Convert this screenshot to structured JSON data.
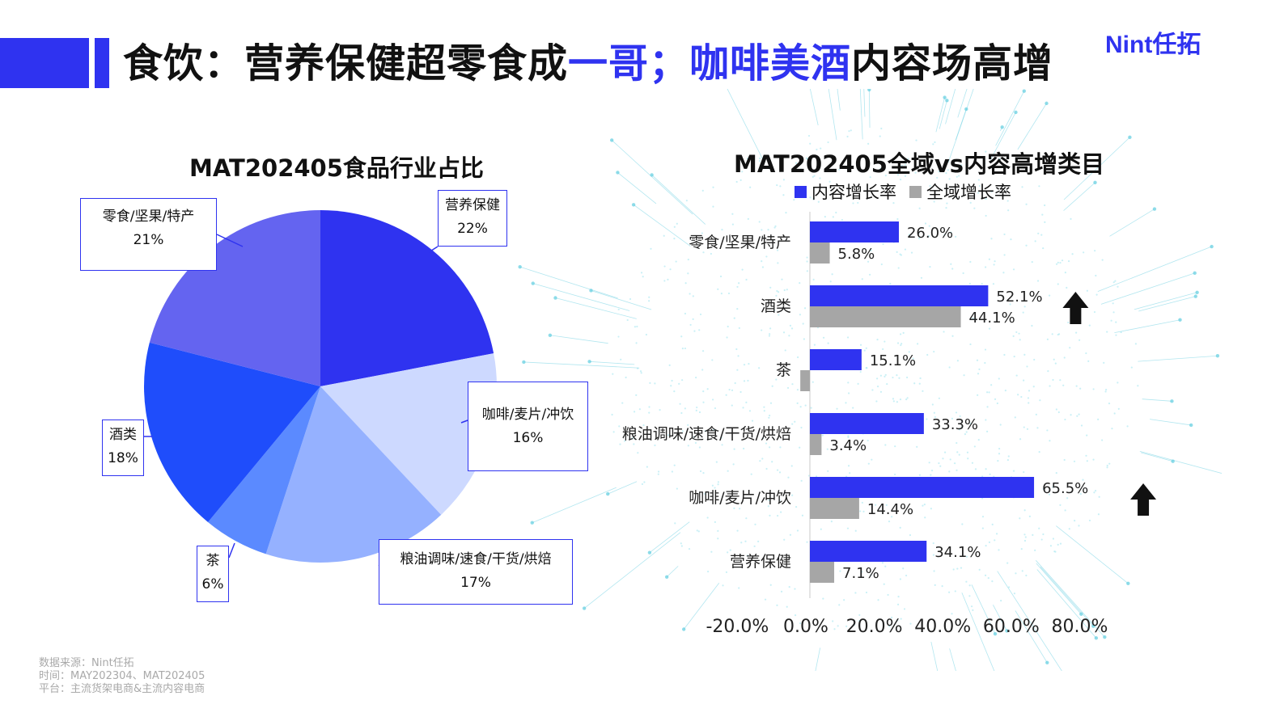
{
  "header": {
    "title_part1": "食饮：营养保健超零食成",
    "title_highlight1": "一哥；咖啡美酒",
    "title_part2": "内容场高增",
    "logo": "Nint任拓"
  },
  "footnote": {
    "line1": "数据来源：Nint任拓",
    "line2": "时间：MAY202304、MAT202405",
    "line3": "平台：主流货架电商&主流内容电商"
  },
  "colors": {
    "brand": "#2f33f0",
    "grey": "#a6a6a6"
  },
  "chart_data": [
    {
      "type": "pie",
      "title": "MAT202405食品行业占比",
      "slices": [
        {
          "name": "营养保健",
          "value": 22,
          "label": "22%",
          "color": "#2f33f0"
        },
        {
          "name": "咖啡/麦片/冲饮",
          "value": 16,
          "label": "16%",
          "color": "#cdd9ff"
        },
        {
          "name": "粮油调味/速食/干货/烘焙",
          "value": 17,
          "label": "17%",
          "color": "#95b1ff"
        },
        {
          "name": "茶",
          "value": 6,
          "label": "6%",
          "color": "#5b8aff"
        },
        {
          "name": "酒类",
          "value": 18,
          "label": "18%",
          "color": "#1f4dfb"
        },
        {
          "name": "零食/坚果/特产",
          "value": 21,
          "label": "21%",
          "color": "#6464f0"
        }
      ]
    },
    {
      "type": "bar",
      "orientation": "horizontal",
      "title": "MAT202405全域vs内容高增类目",
      "categories": [
        "零食/坚果/特产",
        "酒类",
        "茶",
        "粮油调味/速食/干货/烘焙",
        "咖啡/麦片/冲饮",
        "营养保健"
      ],
      "series": [
        {
          "name": "内容增长率",
          "color": "#2f33f0",
          "values": [
            26.0,
            52.1,
            15.1,
            33.3,
            65.5,
            34.1
          ],
          "labels": [
            "26.0%",
            "52.1%",
            "15.1%",
            "33.3%",
            "65.5%",
            "34.1%"
          ]
        },
        {
          "name": "全域增长率",
          "color": "#a6a6a6",
          "values": [
            5.8,
            44.1,
            -2.8,
            3.4,
            14.4,
            7.1
          ],
          "labels": [
            "5.8%",
            "44.1%",
            "",
            "3.4%",
            "14.4%",
            "7.1%"
          ]
        }
      ],
      "xlim": [
        -20,
        80
      ],
      "xticks": [
        "-20.0%",
        "0.0%",
        "20.0%",
        "40.0%",
        "60.0%",
        "80.0%"
      ],
      "highlighted_categories": [
        "酒类",
        "咖啡/麦片/冲饮"
      ],
      "highlight_icon": "arrow-up-icon"
    }
  ]
}
